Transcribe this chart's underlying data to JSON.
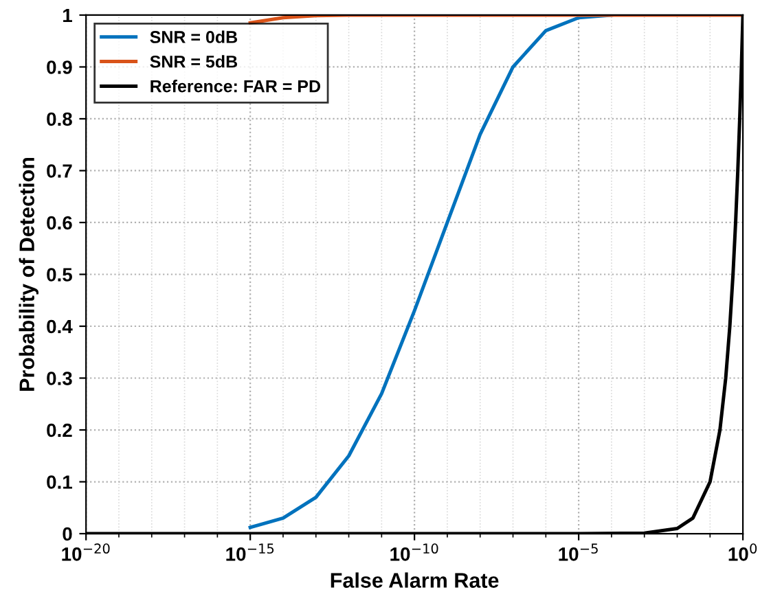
{
  "chart_data": {
    "type": "line",
    "xlabel": "False Alarm Rate",
    "ylabel": "Probability of Detection",
    "log": "x",
    "xlim": [
      1e-20,
      1
    ],
    "ylim": [
      0,
      1
    ],
    "xticks": [
      {
        "value": 1e-20,
        "label": "10$^{−20}$"
      },
      {
        "value": 1e-15,
        "label": "10$^{−15}$"
      },
      {
        "value": 1e-10,
        "label": "10$^{−10}$"
      },
      {
        "value": 1e-05,
        "label": "10$^{−5}$"
      },
      {
        "value": 1,
        "label": "10$^{0}$"
      }
    ],
    "yticks": [
      0,
      0.1,
      0.2,
      0.3,
      0.4,
      0.5,
      0.6,
      0.7,
      0.8,
      0.9,
      1
    ],
    "grid": true,
    "legend": "top left",
    "line_style": "solid",
    "marker": "none",
    "series": [
      {
        "name": "SNR = 0dB",
        "color": "#0072bd",
        "x": [
          1e-15,
          1e-14,
          1e-13,
          1e-12,
          1e-11,
          1e-10,
          1e-09,
          1e-08,
          1e-07,
          1e-06,
          1e-05,
          0.0001
        ],
        "values": [
          0.012,
          0.03,
          0.07,
          0.15,
          0.27,
          0.43,
          0.6,
          0.77,
          0.9,
          0.97,
          0.995,
          1
        ]
      },
      {
        "name": "SNR = 5dB",
        "color": "#d95319",
        "x": [
          1e-15,
          1e-14,
          1e-13,
          1e-12,
          1e-10,
          1e-05,
          1
        ],
        "values": [
          0.985,
          0.995,
          0.999,
          1,
          1,
          1,
          1
        ]
      },
      {
        "name": "Reference: FAR = PD",
        "color": "#000000",
        "x": [
          1e-20,
          1e-05,
          0.001,
          0.01,
          0.03,
          0.1,
          0.2,
          0.3,
          0.4,
          0.5,
          0.6,
          0.7,
          0.8,
          0.9,
          1
        ],
        "values": [
          0,
          0,
          0.001,
          0.01,
          0.03,
          0.1,
          0.2,
          0.3,
          0.4,
          0.5,
          0.6,
          0.7,
          0.8,
          0.9,
          1
        ]
      }
    ]
  }
}
